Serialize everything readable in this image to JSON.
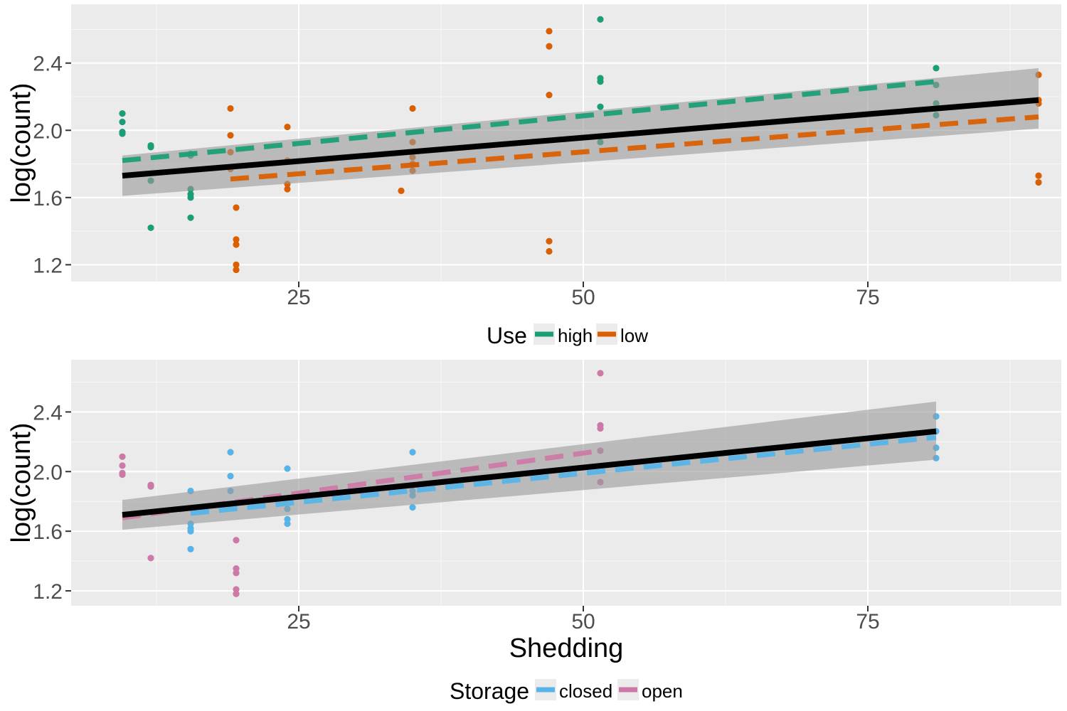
{
  "chart_data": [
    {
      "type": "scatter",
      "panel": "top",
      "xlabel": "",
      "ylabel": "log(count)",
      "xlim": [
        5,
        92
      ],
      "ylim": [
        1.1,
        2.75
      ],
      "x_ticks": [
        25,
        50,
        75
      ],
      "x_tick_labels": [
        "25",
        "50",
        "75"
      ],
      "y_ticks": [
        1.2,
        1.6,
        2.0,
        2.4
      ],
      "y_tick_labels": [
        "1.2",
        "1.6",
        "2.0",
        "2.4"
      ],
      "grid": true,
      "legend": {
        "position": "bottom",
        "title": "Use",
        "entries": [
          {
            "label": "high",
            "color": "#1b9e77"
          },
          {
            "label": "low",
            "color": "#d95f02"
          }
        ]
      },
      "series": [
        {
          "name": "high",
          "color": "#1b9e77",
          "points": [
            [
              9.5,
              2.1
            ],
            [
              9.5,
              2.05
            ],
            [
              9.5,
              1.99
            ],
            [
              9.5,
              1.98
            ],
            [
              12,
              1.91
            ],
            [
              12,
              1.9
            ],
            [
              12,
              1.7
            ],
            [
              12,
              1.42
            ],
            [
              15.5,
              1.86
            ],
            [
              15.5,
              1.85
            ],
            [
              15.5,
              1.65
            ],
            [
              15.5,
              1.62
            ],
            [
              15.5,
              1.6
            ],
            [
              15.5,
              1.48
            ],
            [
              51.5,
              2.66
            ],
            [
              51.5,
              2.31
            ],
            [
              51.5,
              2.29
            ],
            [
              51.5,
              2.14
            ],
            [
              51.5,
              1.93
            ],
            [
              81,
              2.37
            ],
            [
              81,
              2.27
            ],
            [
              81,
              2.16
            ],
            [
              81,
              2.09
            ]
          ],
          "fit": {
            "x": [
              9.5,
              81
            ],
            "y": [
              1.82,
              2.29
            ],
            "style": "dashed"
          }
        },
        {
          "name": "low",
          "color": "#d95f02",
          "points": [
            [
              19,
              2.13
            ],
            [
              19,
              1.97
            ],
            [
              19,
              1.87
            ],
            [
              19,
              1.77
            ],
            [
              19.5,
              1.54
            ],
            [
              19.5,
              1.35
            ],
            [
              19.5,
              1.32
            ],
            [
              19.5,
              1.2
            ],
            [
              19.5,
              1.17
            ],
            [
              24,
              2.02
            ],
            [
              24,
              1.82
            ],
            [
              24,
              1.68
            ],
            [
              24,
              1.65
            ],
            [
              34,
              1.64
            ],
            [
              35,
              2.13
            ],
            [
              35,
              1.93
            ],
            [
              35,
              1.84
            ],
            [
              35,
              1.8
            ],
            [
              35,
              1.76
            ],
            [
              47,
              2.59
            ],
            [
              47,
              2.5
            ],
            [
              47,
              2.21
            ],
            [
              47,
              1.34
            ],
            [
              47,
              1.28
            ],
            [
              90,
              2.33
            ],
            [
              90,
              2.18
            ],
            [
              90,
              2.16
            ],
            [
              90,
              1.73
            ],
            [
              90,
              1.69
            ]
          ],
          "fit": {
            "x": [
              19,
              90
            ],
            "y": [
              1.71,
              2.08
            ],
            "style": "dashed"
          }
        }
      ],
      "overall_fit": {
        "x": [
          9.5,
          90
        ],
        "y": [
          1.73,
          2.18
        ],
        "ci_lower": [
          1.61,
          2.01
        ],
        "ci_upper": [
          1.85,
          2.37
        ],
        "color": "#000000"
      }
    },
    {
      "type": "scatter",
      "panel": "bottom",
      "xlabel": "Shedding",
      "ylabel": "log(count)",
      "xlim": [
        5,
        92
      ],
      "ylim": [
        1.1,
        2.75
      ],
      "x_ticks": [
        25,
        50,
        75
      ],
      "x_tick_labels": [
        "25",
        "50",
        "75"
      ],
      "y_ticks": [
        1.2,
        1.6,
        2.0,
        2.4
      ],
      "y_tick_labels": [
        "1.2",
        "1.6",
        "2.0",
        "2.4"
      ],
      "grid": true,
      "legend": {
        "position": "bottom",
        "title": "Storage",
        "entries": [
          {
            "label": "closed",
            "color": "#56b4e9"
          },
          {
            "label": "open",
            "color": "#cc79a7"
          }
        ]
      },
      "series": [
        {
          "name": "closed",
          "color": "#56b4e9",
          "points": [
            [
              15.5,
              1.87
            ],
            [
              15.5,
              1.65
            ],
            [
              15.5,
              1.62
            ],
            [
              15.5,
              1.6
            ],
            [
              15.5,
              1.48
            ],
            [
              19,
              2.13
            ],
            [
              19,
              1.97
            ],
            [
              19,
              1.87
            ],
            [
              19,
              1.77
            ],
            [
              24,
              2.02
            ],
            [
              24,
              1.75
            ],
            [
              24,
              1.68
            ],
            [
              24,
              1.65
            ],
            [
              35,
              2.13
            ],
            [
              35,
              1.87
            ],
            [
              35,
              1.84
            ],
            [
              35,
              1.76
            ],
            [
              81,
              2.37
            ],
            [
              81,
              2.27
            ],
            [
              81,
              2.16
            ],
            [
              81,
              2.09
            ]
          ],
          "fit": {
            "x": [
              15.5,
              81
            ],
            "y": [
              1.72,
              2.23
            ],
            "style": "dashed"
          }
        },
        {
          "name": "open",
          "color": "#cc79a7",
          "points": [
            [
              9.5,
              2.1
            ],
            [
              9.5,
              2.04
            ],
            [
              9.5,
              1.99
            ],
            [
              9.5,
              1.98
            ],
            [
              12,
              1.91
            ],
            [
              12,
              1.9
            ],
            [
              12,
              1.42
            ],
            [
              19.5,
              1.54
            ],
            [
              19.5,
              1.35
            ],
            [
              19.5,
              1.32
            ],
            [
              19.5,
              1.21
            ],
            [
              19.5,
              1.18
            ],
            [
              51.5,
              2.66
            ],
            [
              51.5,
              2.31
            ],
            [
              51.5,
              2.29
            ],
            [
              51.5,
              2.14
            ],
            [
              51.5,
              1.93
            ]
          ],
          "fit": {
            "x": [
              9.5,
              51.5
            ],
            "y": [
              1.69,
              2.14
            ],
            "style": "dashed"
          }
        }
      ],
      "overall_fit": {
        "x": [
          9.5,
          81
        ],
        "y": [
          1.71,
          2.27
        ],
        "ci_lower": [
          1.61,
          2.08
        ],
        "ci_upper": [
          1.81,
          2.47
        ],
        "color": "#000000"
      }
    }
  ]
}
